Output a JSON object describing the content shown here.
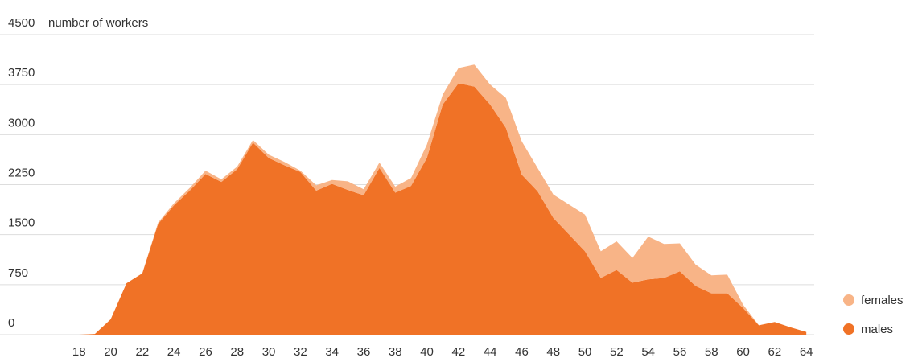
{
  "chart_data": {
    "type": "stacked-area",
    "y_label": "number of workers",
    "x": [
      18,
      19,
      20,
      21,
      22,
      23,
      24,
      25,
      26,
      27,
      28,
      29,
      30,
      31,
      32,
      33,
      34,
      35,
      36,
      37,
      38,
      39,
      40,
      41,
      42,
      43,
      44,
      45,
      46,
      47,
      48,
      49,
      50,
      51,
      52,
      53,
      54,
      55,
      56,
      57,
      58,
      59,
      60,
      61,
      62,
      63,
      64
    ],
    "series": [
      {
        "name": "males",
        "color": "#f07226",
        "values": [
          0,
          10,
          230,
          770,
          920,
          1660,
          1940,
          2160,
          2410,
          2290,
          2480,
          2880,
          2650,
          2540,
          2440,
          2160,
          2260,
          2170,
          2090,
          2500,
          2130,
          2230,
          2650,
          3450,
          3770,
          3720,
          3450,
          3100,
          2400,
          2150,
          1750,
          1500,
          1250,
          850,
          970,
          780,
          830,
          850,
          950,
          730,
          620,
          620,
          400,
          140,
          190,
          110,
          40
        ]
      },
      {
        "name": "females",
        "color": "#f8b487",
        "values": [
          0,
          0,
          0,
          0,
          0,
          20,
          30,
          40,
          50,
          40,
          40,
          40,
          50,
          50,
          20,
          80,
          60,
          130,
          90,
          80,
          90,
          120,
          200,
          150,
          230,
          330,
          300,
          450,
          500,
          350,
          350,
          450,
          550,
          400,
          430,
          370,
          640,
          510,
          420,
          320,
          270,
          280,
          50,
          0,
          0,
          0,
          0
        ]
      }
    ],
    "xlim": [
      13,
      64.5
    ],
    "xticks": [
      18,
      20,
      22,
      24,
      26,
      28,
      30,
      32,
      34,
      36,
      38,
      40,
      42,
      44,
      46,
      48,
      50,
      52,
      54,
      56,
      58,
      60,
      62,
      64
    ],
    "ylim": [
      0,
      4500
    ],
    "yticks": [
      0,
      750,
      1500,
      2250,
      3000,
      3750,
      4500
    ],
    "grid": true,
    "legend": "bottom-right"
  }
}
